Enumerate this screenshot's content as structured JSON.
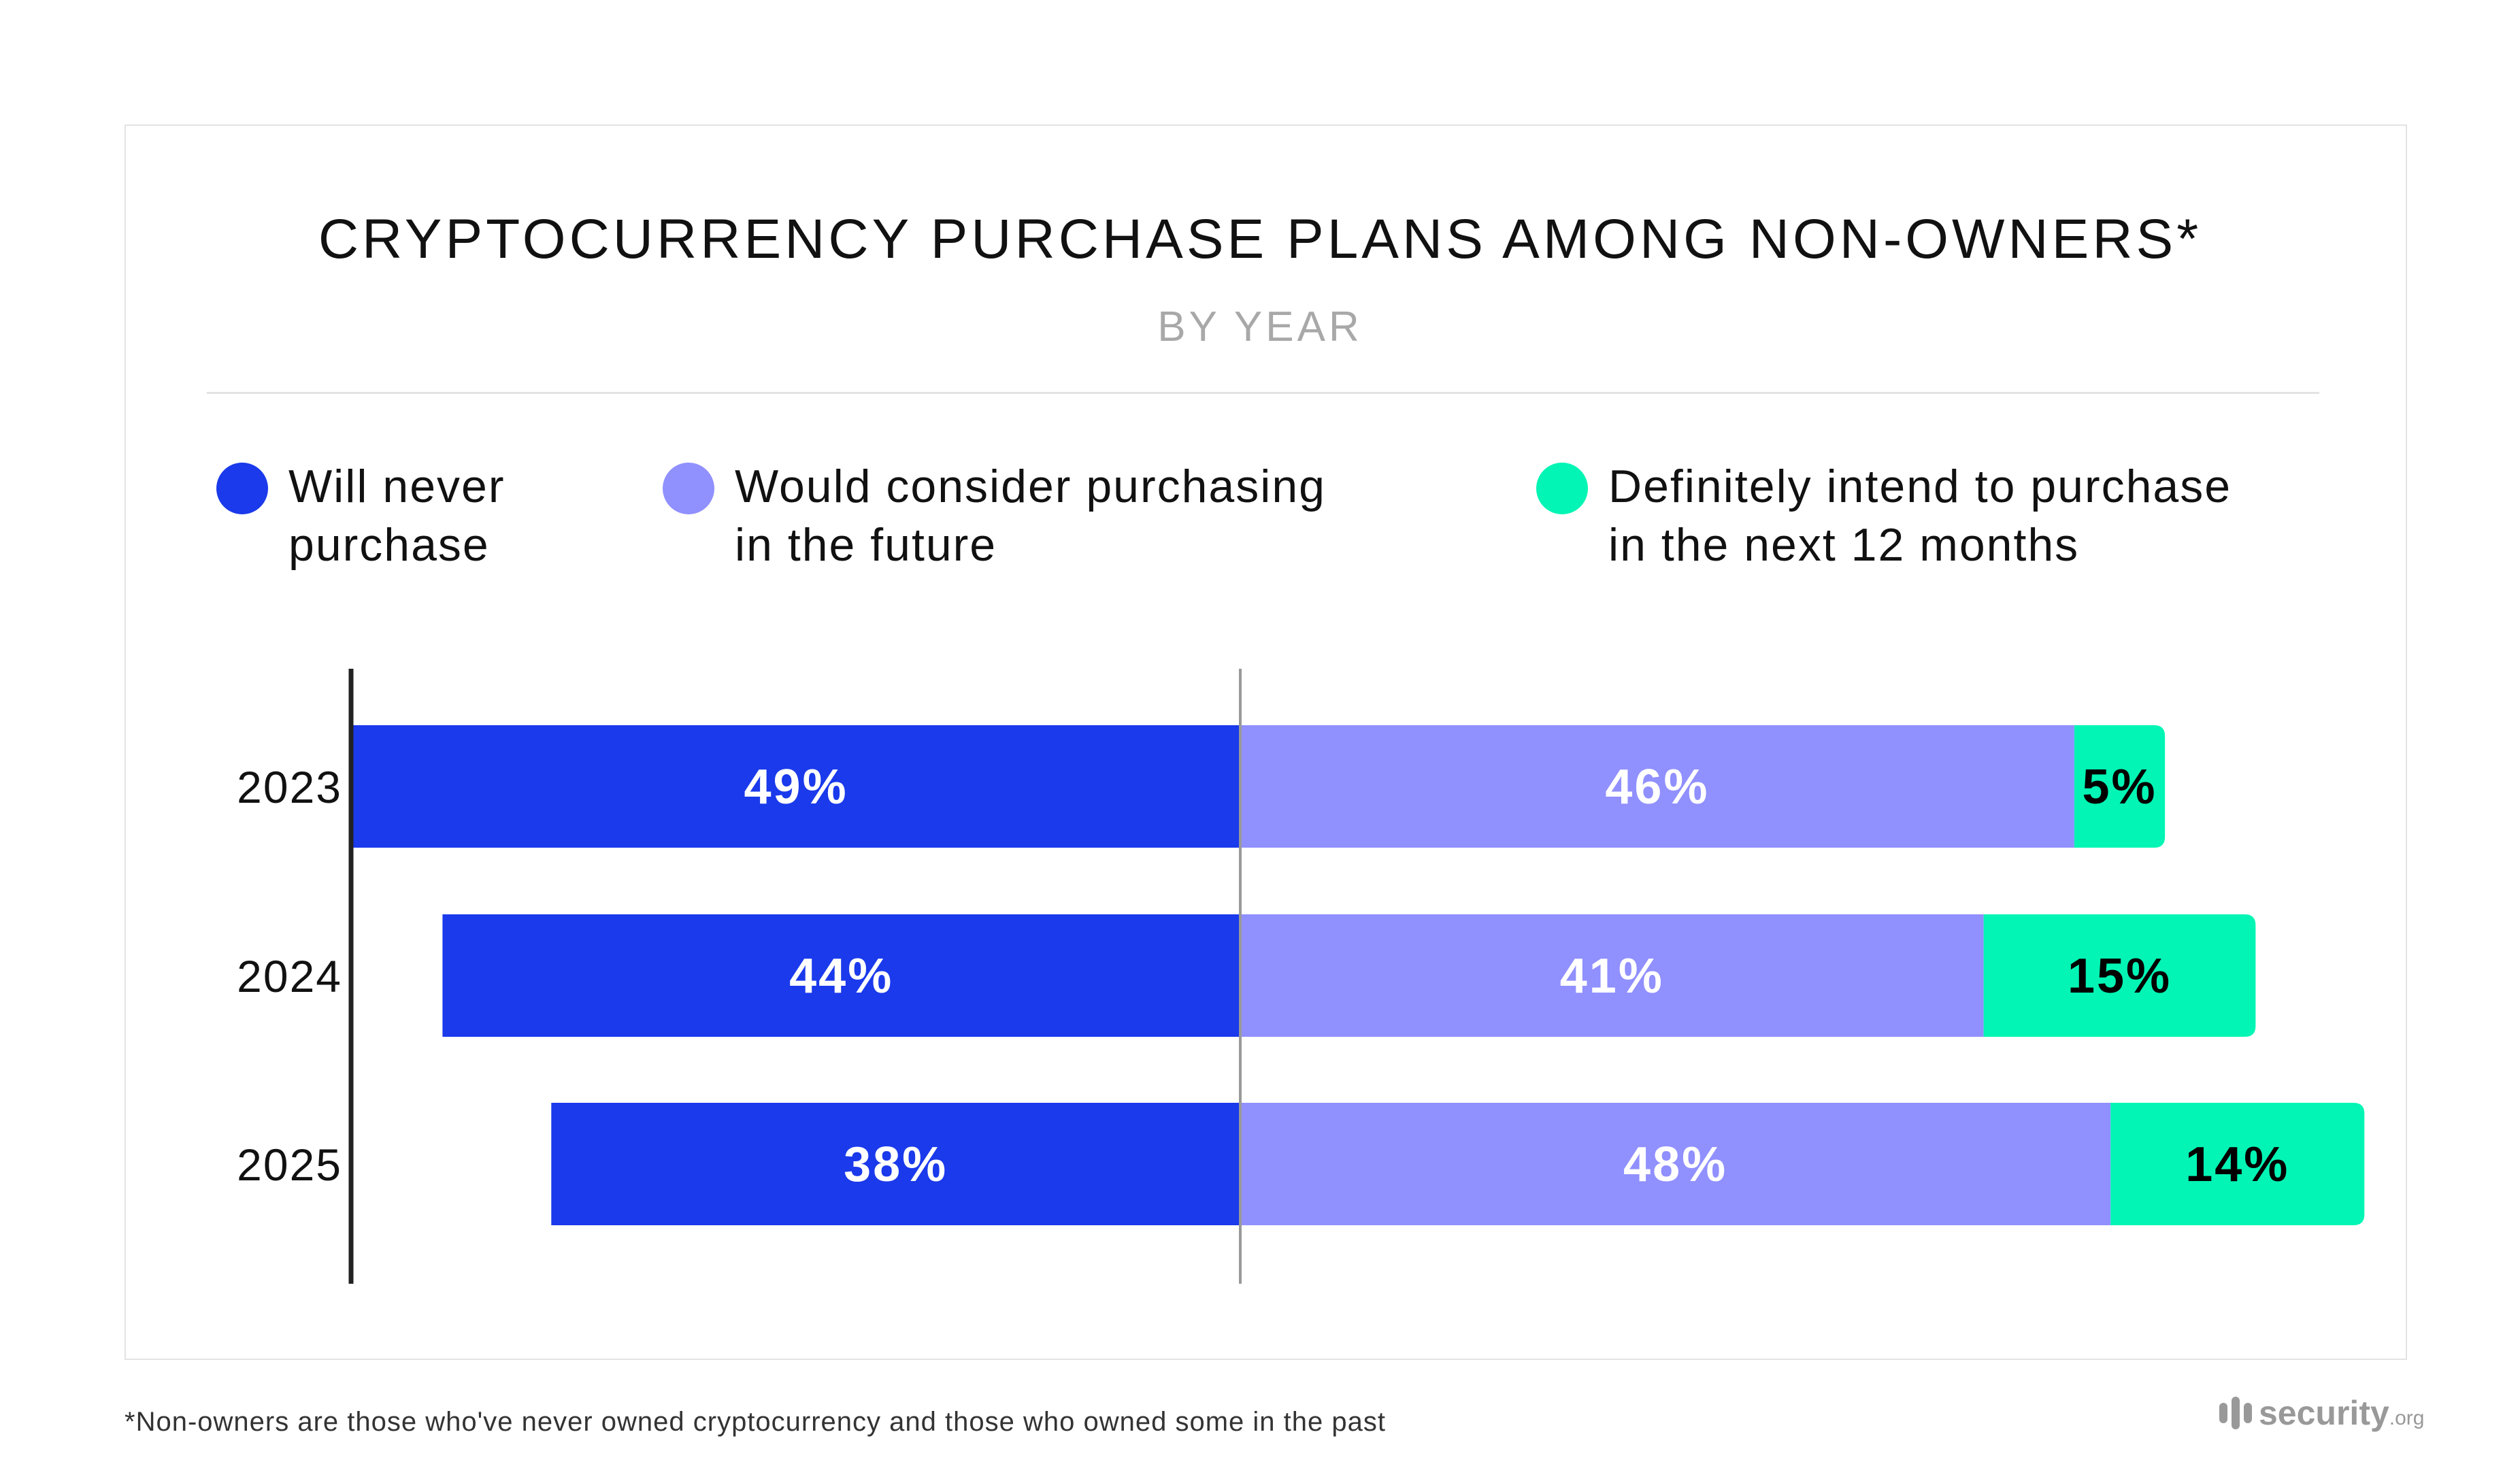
{
  "title": "CRYPTOCURRENCY PURCHASE PLANS AMONG NON-OWNERS*",
  "subtitle": "BY YEAR",
  "footnote": "*Non-owners are those who've never owned cryptocurrency and those who owned some in the past",
  "logo": {
    "word": "security",
    "tld": ".org"
  },
  "colors": {
    "never": "#1a3aeb",
    "consider": "#9090ff",
    "intend": "#02f5b4"
  },
  "chart_data": {
    "type": "bar",
    "orientation": "horizontal-diverging-stacked",
    "categories": [
      "2023",
      "2024",
      "2025"
    ],
    "series": [
      {
        "name": "Will never\npurchase",
        "values": [
          49,
          44,
          38
        ],
        "color": "#1a3aeb",
        "label_color": "#ffffff",
        "side": "left"
      },
      {
        "name": "Would consider purchasing\nin the future",
        "values": [
          46,
          41,
          48
        ],
        "color": "#9090ff",
        "label_color": "#ffffff",
        "side": "right"
      },
      {
        "name": "Definitely intend to purchase\nin the next 12 months",
        "values": [
          5,
          15,
          14
        ],
        "color": "#02f5b4",
        "label_color": "#000000",
        "side": "right"
      }
    ],
    "labels": [
      [
        "49%",
        "46%",
        "5%"
      ],
      [
        "44%",
        "41%",
        "15%"
      ],
      [
        "38%",
        "48%",
        "14%"
      ]
    ],
    "unit": "%",
    "legend_position": "top",
    "grid": false
  }
}
